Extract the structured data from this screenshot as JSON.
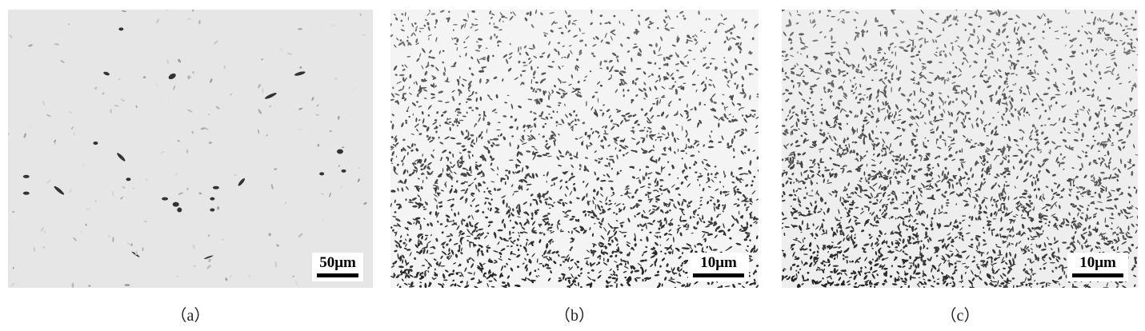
{
  "panels": [
    {
      "id": "a",
      "scale_label": "50μm",
      "caption": "（a）"
    },
    {
      "id": "b",
      "scale_label": "10μm",
      "caption": "（b）"
    },
    {
      "id": "c",
      "scale_label": "10μm",
      "caption": "（c）"
    }
  ]
}
